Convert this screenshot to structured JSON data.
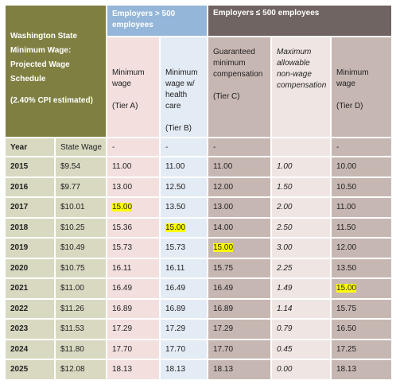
{
  "header": {
    "title": "Washington State Minimum Wage: Projected Wage Schedule",
    "subtitle": "(2.40% CPI estimated)"
  },
  "table": {
    "groups": [
      "Employers > 500 employees",
      "Employers ≤ 500 employees"
    ],
    "columns": [
      {
        "label": "Minimum wage",
        "tier": "(Tier A)"
      },
      {
        "label": "Minimum wage w/ health care",
        "tier": "(Tier B)"
      },
      {
        "label": "Guaranteed minimum compensation",
        "tier": "(Tier C)"
      },
      {
        "label": "Maximum allowable non-wage compensation"
      },
      {
        "label": "Minimum wage",
        "tier": "(Tier D)"
      }
    ],
    "header_row": [
      "Year",
      "State Wage",
      "-",
      "-",
      "-",
      "",
      "-"
    ],
    "rows": [
      [
        "2015",
        "$9.54",
        "11.00",
        "11.00",
        "11.00",
        "1.00",
        "10.00"
      ],
      [
        "2016",
        "$9.77",
        "13.00",
        "12.50",
        "12.00",
        "1.50",
        "10.50"
      ],
      [
        "2017",
        "$10.01",
        "15.00",
        "13.50",
        "13.00",
        "2.00",
        "11.00"
      ],
      [
        "2018",
        "$10.25",
        "15.36",
        "15.00",
        "14.00",
        "2.50",
        "11.50"
      ],
      [
        "2019",
        "$10.49",
        "15.73",
        "15.73",
        "15.00",
        "3.00",
        "12.00"
      ],
      [
        "2020",
        "$10.75",
        "16.11",
        "16.11",
        "15.75",
        "2.25",
        "13.50"
      ],
      [
        "2021",
        "$11.00",
        "16.49",
        "16.49",
        "16.49",
        "1.49",
        "15.00"
      ],
      [
        "2022",
        "$11.26",
        "16.89",
        "16.89",
        "16.89",
        "1.14",
        "15.75"
      ],
      [
        "2023",
        "$11.53",
        "17.29",
        "17.29",
        "17.29",
        "0.79",
        "16.50"
      ],
      [
        "2024",
        "$11.80",
        "17.70",
        "17.70",
        "17.70",
        "0.45",
        "17.25"
      ],
      [
        "2025",
        "$12.08",
        "18.13",
        "18.13",
        "18.13",
        "0.00",
        "18.13"
      ]
    ]
  }
}
